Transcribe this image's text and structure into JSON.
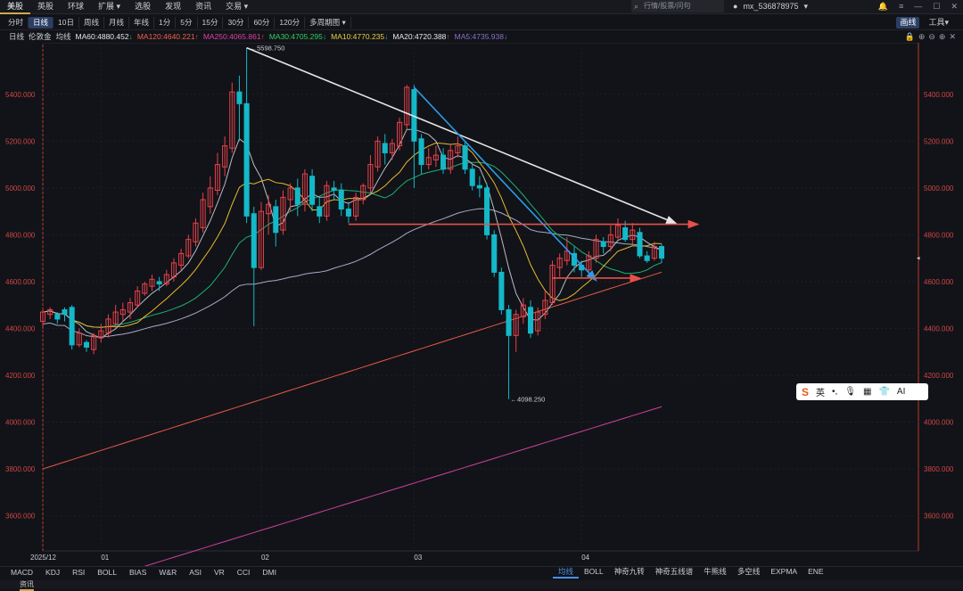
{
  "nav": {
    "items": [
      "美股",
      "英股",
      "环球",
      "扩展 ▾",
      "选股",
      "发现",
      "资讯",
      "交易 ▾"
    ],
    "active_index": 0
  },
  "search": {
    "placeholder": "行情/股票/问句"
  },
  "user": {
    "name": "mx_536878975",
    "arrow": "▾"
  },
  "periods": {
    "items": [
      "分时",
      "日线",
      "10日",
      "周线",
      "月线",
      "年线",
      "1分",
      "5分",
      "15分",
      "30分",
      "60分",
      "120分",
      "多周期图 ▾"
    ],
    "selected_index": 1,
    "right": [
      "画线",
      "工具▾"
    ]
  },
  "ma_bar": {
    "items": [
      {
        "text": "日线",
        "color": "#c9ccd2"
      },
      {
        "text": "伦敦金",
        "color": "#c9ccd2"
      },
      {
        "text": "均线",
        "color": "#c9ccd2"
      },
      {
        "text": "MA60:4880.452",
        "arrow": "↓",
        "color": "#e6e8ee"
      },
      {
        "text": "MA120:4640.221",
        "arrow": "↑",
        "color": "#f0604a"
      },
      {
        "text": "MA250:4065.861",
        "arrow": "↑",
        "color": "#e040a0"
      },
      {
        "text": "MA30:4705.295",
        "arrow": "↓",
        "color": "#30d060"
      },
      {
        "text": "MA10:4770.235",
        "arrow": "↓",
        "color": "#e8d040"
      },
      {
        "text": "MA20:4720.388",
        "arrow": "↑",
        "color": "#e6e8ee"
      },
      {
        "text": "MA5:4735.938",
        "arrow": "↓",
        "color": "#8a70c8"
      }
    ],
    "tools": [
      "🔒",
      "⊕",
      "⊖",
      "⊕",
      "✕"
    ]
  },
  "chart_data": {
    "type": "candlestick",
    "y_ticks": [
      3600,
      3800,
      4000,
      4200,
      4400,
      4600,
      4800,
      5000,
      5200,
      5400
    ],
    "y_tick_labels": [
      "3600.000",
      "3800.000",
      "4000.000",
      "4200.000",
      "4400.000",
      "4600.000",
      "4800.000",
      "5000.000",
      "5200.000",
      "5400.000"
    ],
    "ylim": [
      3450,
      5620
    ],
    "x_labels": [
      "2025/12",
      "01",
      "02",
      "03",
      "04"
    ],
    "high_label": "5598.750",
    "low_label": "4098.250",
    "up_color": "#e8424a",
    "down_color": "#14b8c8",
    "candles": [
      [
        4430,
        4470,
        4400,
        4480
      ],
      [
        4460,
        4480,
        4440,
        4490
      ],
      [
        4460,
        4440,
        4420,
        4470
      ],
      [
        4480,
        4460,
        4430,
        4490
      ],
      [
        4490,
        4330,
        4310,
        4500
      ],
      [
        4330,
        4380,
        4320,
        4400
      ],
      [
        4340,
        4320,
        4300,
        4350
      ],
      [
        4310,
        4370,
        4290,
        4380
      ],
      [
        4360,
        4390,
        4340,
        4420
      ],
      [
        4380,
        4440,
        4360,
        4460
      ],
      [
        4420,
        4470,
        4400,
        4500
      ],
      [
        4460,
        4480,
        4430,
        4510
      ],
      [
        4470,
        4510,
        4440,
        4530
      ],
      [
        4500,
        4560,
        4490,
        4580
      ],
      [
        4550,
        4590,
        4540,
        4600
      ],
      [
        4580,
        4610,
        4560,
        4630
      ],
      [
        4600,
        4590,
        4560,
        4620
      ],
      [
        4590,
        4630,
        4580,
        4650
      ],
      [
        4620,
        4680,
        4600,
        4700
      ],
      [
        4670,
        4720,
        4650,
        4740
      ],
      [
        4710,
        4780,
        4700,
        4800
      ],
      [
        4770,
        4850,
        4750,
        4870
      ],
      [
        4830,
        4950,
        4810,
        4980
      ],
      [
        4920,
        5000,
        4890,
        5050
      ],
      [
        4990,
        5100,
        4970,
        5150
      ],
      [
        5090,
        5180,
        5050,
        5220
      ],
      [
        5170,
        5410,
        5150,
        5450
      ],
      [
        5410,
        5360,
        5200,
        5480
      ],
      [
        5360,
        4880,
        4850,
        5598.75
      ],
      [
        4890,
        4660,
        4410,
        4920
      ],
      [
        4660,
        4900,
        4650,
        4940
      ],
      [
        4890,
        4930,
        4800,
        4970
      ],
      [
        4920,
        4810,
        4750,
        4950
      ],
      [
        4820,
        4960,
        4800,
        4990
      ],
      [
        4950,
        5000,
        4900,
        5020
      ],
      [
        5000,
        4930,
        4880,
        5040
      ],
      [
        4930,
        5060,
        4900,
        5080
      ],
      [
        5050,
        4930,
        4900,
        5080
      ],
      [
        4920,
        4880,
        4850,
        4960
      ],
      [
        4880,
        5010,
        4860,
        5030
      ],
      [
        5000,
        4990,
        4950,
        5030
      ],
      [
        4990,
        4910,
        4880,
        5020
      ],
      [
        4910,
        4880,
        4850,
        4940
      ],
      [
        4880,
        4960,
        4860,
        4980
      ],
      [
        4950,
        5010,
        4930,
        5020
      ],
      [
        5000,
        5100,
        4980,
        5140
      ],
      [
        5090,
        5200,
        5070,
        5220
      ],
      [
        5190,
        5150,
        5100,
        5230
      ],
      [
        5150,
        5190,
        5120,
        5210
      ],
      [
        5180,
        5280,
        5160,
        5300
      ],
      [
        5270,
        5430,
        5250,
        5440
      ],
      [
        5420,
        5200,
        5000,
        5440
      ],
      [
        5210,
        5100,
        5060,
        5230
      ],
      [
        5100,
        5130,
        5080,
        5170
      ],
      [
        5120,
        5140,
        5090,
        5180
      ],
      [
        5140,
        5080,
        5060,
        5170
      ],
      [
        5080,
        5160,
        5060,
        5190
      ],
      [
        5150,
        5180,
        5130,
        5220
      ],
      [
        5180,
        5080,
        5060,
        5200
      ],
      [
        5080,
        5010,
        4990,
        5100
      ],
      [
        5010,
        5000,
        4960,
        5050
      ],
      [
        5000,
        4800,
        4780,
        5020
      ],
      [
        4800,
        4640,
        4620,
        4820
      ],
      [
        4640,
        4480,
        4460,
        4660
      ],
      [
        4480,
        4370,
        4098.25,
        4500
      ],
      [
        4370,
        4460,
        4300,
        4480
      ],
      [
        4450,
        4500,
        4420,
        4530
      ],
      [
        4490,
        4380,
        4360,
        4520
      ],
      [
        4390,
        4470,
        4370,
        4490
      ],
      [
        4460,
        4520,
        4440,
        4560
      ],
      [
        4510,
        4670,
        4500,
        4690
      ],
      [
        4660,
        4700,
        4620,
        4720
      ],
      [
        4690,
        4730,
        4670,
        4790
      ],
      [
        4720,
        4670,
        4640,
        4750
      ],
      [
        4670,
        4650,
        4620,
        4690
      ],
      [
        4650,
        4710,
        4630,
        4730
      ],
      [
        4700,
        4780,
        4680,
        4800
      ],
      [
        4770,
        4750,
        4720,
        4790
      ],
      [
        4750,
        4800,
        4730,
        4840
      ],
      [
        4790,
        4840,
        4780,
        4870
      ],
      [
        4830,
        4780,
        4770,
        4860
      ],
      [
        4780,
        4820,
        4760,
        4850
      ],
      [
        4810,
        4710,
        4700,
        4830
      ],
      [
        4710,
        4690,
        4680,
        4730
      ],
      [
        4700,
        4750,
        4690,
        4770
      ],
      [
        4750,
        4700,
        4680,
        4760
      ]
    ],
    "ma": {
      "MA5": {
        "color": "#b8bcc6"
      },
      "MA10": {
        "color": "#e8b830"
      },
      "MA20": {
        "color": "#20b070"
      },
      "MA60": {
        "color": "#a8aac8"
      },
      "MA120": {
        "color": "#e85848"
      },
      "MA250": {
        "color": "#d0409c"
      }
    },
    "trendlines": [
      {
        "from": [
          28,
          5598.75
        ],
        "to": [
          87,
          4848
        ],
        "color": "#e6e6e6",
        "arrow": true
      },
      {
        "from": [
          51,
          5430
        ],
        "to": [
          76,
          4605
        ],
        "color": "#2e9ae8",
        "arrow": true
      },
      {
        "from": [
          42,
          4845
        ],
        "to": [
          90,
          4845
        ],
        "color": "#e8504a",
        "arrow": true
      },
      {
        "from": [
          70,
          4615
        ],
        "to": [
          82,
          4615
        ],
        "color": "#e8504a",
        "arrow": true
      }
    ]
  },
  "indicators_left": [
    "MACD",
    "KDJ",
    "RSI",
    "BOLL",
    "BIAS",
    "W&R",
    "ASI",
    "VR",
    "CCI",
    "DMI"
  ],
  "indicators_right": [
    "均线",
    "BOLL",
    "神奇九转",
    "神奇五线谱",
    "牛熊线",
    "多空线",
    "EXPMA",
    "ENE"
  ],
  "indicators_right_selected": 0,
  "bottom_tab": "资讯",
  "ime": {
    "logo": "S",
    "items": [
      "英",
      "•,",
      "🎙",
      "▦",
      "👕",
      "AI"
    ]
  }
}
